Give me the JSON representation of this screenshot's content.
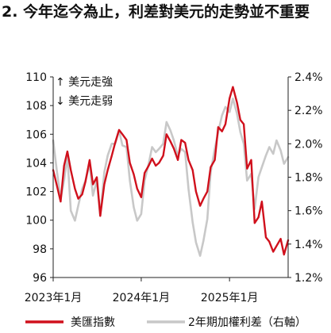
{
  "heading": "2. 今年迄今為止，利差對美元的走勢並不重要",
  "chart_data": {
    "type": "line",
    "title": "",
    "xlabel": "",
    "ylabel": "",
    "x_tick_labels": [
      "2023年1月",
      "2024年1月",
      "2025年1月"
    ],
    "x_ticks": [
      "2023-01",
      "2024-01",
      "2025-01"
    ],
    "x_range": [
      "2023-01",
      "2025-09"
    ],
    "y_left": {
      "range": [
        96,
        110
      ],
      "ticks": [
        96,
        98,
        100,
        102,
        104,
        106,
        108,
        110
      ]
    },
    "y_right": {
      "range": [
        1.2,
        2.4
      ],
      "ticks": [
        "1.2%",
        "1.4%",
        "1.6%",
        "1.8%",
        "2.0%",
        "2.2%",
        "2.4%"
      ]
    },
    "annotations": [
      "↑ 美元走強",
      "↓ 美元走弱"
    ],
    "legend_position": "bottom",
    "grid": false,
    "series": [
      {
        "name": "美匯指數",
        "axis": "left",
        "color": "#d0101c",
        "x": [
          "2023-01-01",
          "2023-01-15",
          "2023-02-01",
          "2023-02-15",
          "2023-03-01",
          "2023-03-15",
          "2023-04-01",
          "2023-04-15",
          "2023-05-01",
          "2023-05-15",
          "2023-06-01",
          "2023-06-15",
          "2023-07-01",
          "2023-07-15",
          "2023-08-01",
          "2023-08-15",
          "2023-09-01",
          "2023-09-15",
          "2023-10-01",
          "2023-10-15",
          "2023-11-01",
          "2023-11-15",
          "2023-12-01",
          "2023-12-15",
          "2024-01-01",
          "2024-01-15",
          "2024-02-01",
          "2024-02-15",
          "2024-03-01",
          "2024-03-15",
          "2024-04-01",
          "2024-04-15",
          "2024-05-01",
          "2024-05-15",
          "2024-06-01",
          "2024-06-15",
          "2024-07-01",
          "2024-07-15",
          "2024-08-01",
          "2024-08-15",
          "2024-09-01",
          "2024-09-15",
          "2024-10-01",
          "2024-10-15",
          "2024-11-01",
          "2024-11-15",
          "2024-12-01",
          "2024-12-15",
          "2025-01-01",
          "2025-01-15",
          "2025-02-01",
          "2025-02-15",
          "2025-03-01",
          "2025-03-15",
          "2025-04-01",
          "2025-04-15",
          "2025-05-01",
          "2025-05-15",
          "2025-06-01",
          "2025-06-15",
          "2025-07-01",
          "2025-07-15",
          "2025-08-01",
          "2025-08-15",
          "2025-09-01"
        ],
        "values": [
          103.5,
          102.5,
          101.3,
          103.8,
          104.8,
          103.5,
          102.2,
          101.5,
          101.8,
          102.7,
          104.2,
          102.5,
          103.0,
          100.3,
          102.5,
          103.5,
          104.5,
          105.4,
          106.3,
          106.0,
          105.6,
          104.0,
          103.2,
          102.2,
          101.6,
          103.3,
          103.8,
          104.3,
          103.8,
          104.0,
          104.5,
          106.0,
          105.5,
          105.0,
          104.2,
          105.6,
          105.4,
          104.2,
          103.5,
          102.0,
          101.0,
          101.5,
          102.0,
          103.7,
          104.2,
          106.5,
          106.2,
          106.7,
          108.5,
          109.3,
          108.2,
          107.0,
          106.7,
          103.6,
          104.2,
          99.8,
          100.2,
          101.3,
          98.8,
          98.5,
          97.8,
          98.2,
          98.7,
          97.6,
          98.6
        ]
      },
      {
        "name": "2年期加權利差（右軸）",
        "axis": "right",
        "color": "#c8c8c8",
        "x": [
          "2023-01-01",
          "2023-01-15",
          "2023-02-01",
          "2023-02-15",
          "2023-03-01",
          "2023-03-15",
          "2023-04-01",
          "2023-04-15",
          "2023-05-01",
          "2023-05-15",
          "2023-06-01",
          "2023-06-15",
          "2023-07-01",
          "2023-07-15",
          "2023-08-01",
          "2023-08-15",
          "2023-09-01",
          "2023-09-15",
          "2023-10-01",
          "2023-10-15",
          "2023-11-01",
          "2023-11-15",
          "2023-12-01",
          "2023-12-15",
          "2024-01-01",
          "2024-01-15",
          "2024-02-01",
          "2024-02-15",
          "2024-03-01",
          "2024-03-15",
          "2024-04-01",
          "2024-04-15",
          "2024-05-01",
          "2024-05-15",
          "2024-06-01",
          "2024-06-15",
          "2024-07-01",
          "2024-07-15",
          "2024-08-01",
          "2024-08-15",
          "2024-09-01",
          "2024-09-15",
          "2024-10-01",
          "2024-10-15",
          "2024-11-01",
          "2024-11-15",
          "2024-12-01",
          "2024-12-15",
          "2025-01-01",
          "2025-01-15",
          "2025-02-01",
          "2025-02-15",
          "2025-03-01",
          "2025-03-15",
          "2025-04-01",
          "2025-04-15",
          "2025-05-01",
          "2025-05-15",
          "2025-06-01",
          "2025-06-15",
          "2025-07-01",
          "2025-07-15",
          "2025-08-01",
          "2025-08-15",
          "2025-09-01"
        ],
        "values": [
          2.02,
          1.85,
          1.67,
          1.78,
          1.93,
          1.6,
          1.54,
          1.63,
          1.73,
          1.78,
          1.88,
          1.69,
          1.78,
          1.57,
          1.83,
          1.93,
          2.0,
          2.0,
          2.08,
          1.99,
          1.98,
          1.78,
          1.62,
          1.54,
          1.58,
          1.78,
          1.88,
          1.98,
          1.95,
          1.97,
          2.0,
          2.13,
          2.08,
          2.02,
          1.93,
          1.97,
          1.95,
          1.73,
          1.53,
          1.41,
          1.33,
          1.42,
          1.55,
          1.83,
          1.97,
          2.07,
          2.17,
          2.22,
          2.19,
          2.27,
          2.18,
          2.07,
          2.0,
          1.78,
          1.82,
          1.61,
          1.8,
          1.86,
          1.93,
          1.98,
          1.94,
          2.02,
          1.96,
          1.88,
          1.92
        ]
      }
    ]
  }
}
